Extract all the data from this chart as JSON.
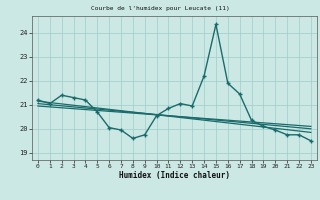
{
  "title": "Courbe de l'humidex pour Leucate (11)",
  "xlabel": "Humidex (Indice chaleur)",
  "background_color": "#cce8e4",
  "grid_color": "#9ececa",
  "line_color": "#1a6b6b",
  "xlim": [
    -0.5,
    23.5
  ],
  "ylim": [
    18.7,
    24.7
  ],
  "yticks": [
    19,
    20,
    21,
    22,
    23,
    24
  ],
  "xticks": [
    0,
    1,
    2,
    3,
    4,
    5,
    6,
    7,
    8,
    9,
    10,
    11,
    12,
    13,
    14,
    15,
    16,
    17,
    18,
    19,
    20,
    21,
    22,
    23
  ],
  "series1_x": [
    0,
    1,
    2,
    3,
    4,
    5,
    6,
    7,
    8,
    9,
    10,
    11,
    12,
    13,
    14,
    15,
    16,
    17,
    18,
    19,
    20,
    21,
    22,
    23
  ],
  "series1_y": [
    21.2,
    21.05,
    21.4,
    21.3,
    21.2,
    20.7,
    20.05,
    19.95,
    19.6,
    19.75,
    20.55,
    20.85,
    21.05,
    20.95,
    22.2,
    24.35,
    21.9,
    21.45,
    20.35,
    20.1,
    19.95,
    19.75,
    19.75,
    19.5
  ],
  "trend1_x": [
    0,
    23
  ],
  "trend1_y": [
    21.15,
    19.85
  ],
  "trend2_x": [
    0,
    23
  ],
  "trend2_y": [
    21.05,
    20.0
  ],
  "trend3_x": [
    0,
    23
  ],
  "trend3_y": [
    20.95,
    20.1
  ]
}
